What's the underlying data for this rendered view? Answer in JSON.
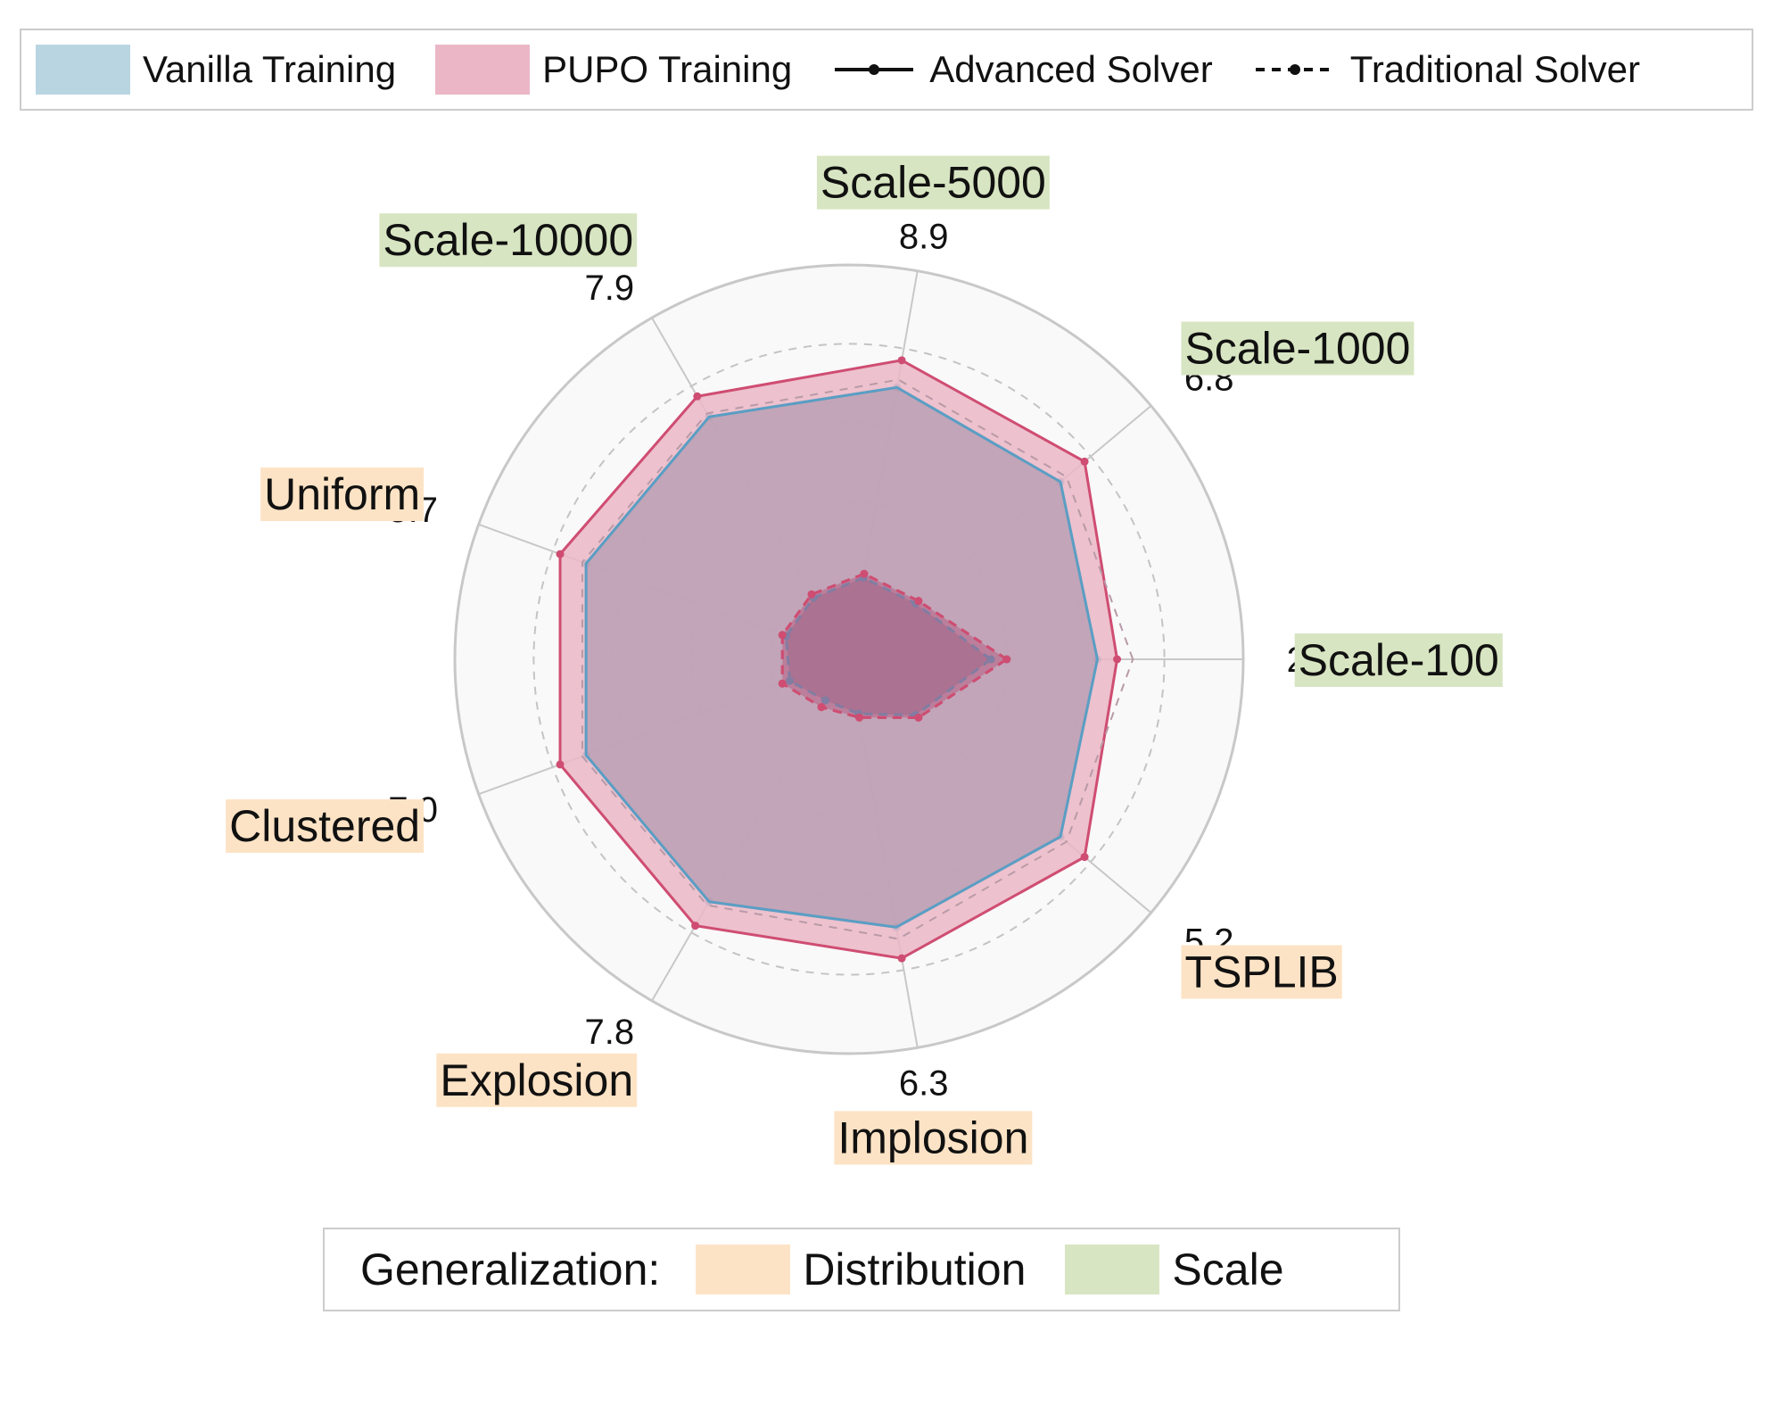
{
  "legend_top": {
    "vanilla_label": "Vanilla Training",
    "pupo_label": "PUPO Training",
    "advanced_label": "Advanced Solver",
    "traditional_label": "Traditional Solver"
  },
  "legend_bottom": {
    "title": "Generalization:",
    "distribution_label": "Distribution",
    "scale_label": "Scale"
  },
  "colors": {
    "vanilla_fill": "#b9d5e2",
    "vanilla_line": "#5a9ec4",
    "pupo_fill": "#ebb7c6",
    "pupo_line": "#cf4d72",
    "distribution_bg": "#fde3c5",
    "scale_bg": "#d8e5c2",
    "grid": "#c8c8c8",
    "background": "#f9f9f9"
  },
  "chart_data": {
    "type": "radar",
    "axes": [
      {
        "name": "Scale-100",
        "value_label": "2.5",
        "group": "Scale"
      },
      {
        "name": "Scale-1000",
        "value_label": "6.8",
        "group": "Scale"
      },
      {
        "name": "Scale-5000",
        "value_label": "8.9",
        "group": "Scale"
      },
      {
        "name": "Scale-10000",
        "value_label": "7.9",
        "group": "Scale"
      },
      {
        "name": "Uniform",
        "value_label": "5.7",
        "group": "Distribution"
      },
      {
        "name": "Clustered",
        "value_label": "7.0",
        "group": "Distribution"
      },
      {
        "name": "Explosion",
        "value_label": "7.8",
        "group": "Distribution"
      },
      {
        "name": "Implosion",
        "value_label": "6.3",
        "group": "Distribution"
      },
      {
        "name": "TSPLIB",
        "value_label": "5.2",
        "group": "Distribution"
      }
    ],
    "rlim": [
      0,
      1
    ],
    "grid_rings": [
      0.2,
      0.4,
      0.6,
      0.8
    ],
    "series": [
      {
        "name": "Vanilla Training",
        "solver": "Traditional Solver",
        "values": [
          0.36,
          0.22,
          0.21,
          0.18,
          0.17,
          0.16,
          0.12,
          0.14,
          0.22
        ]
      },
      {
        "name": "PUPO Training",
        "solver": "Traditional Solver",
        "values": [
          0.4,
          0.23,
          0.22,
          0.19,
          0.18,
          0.18,
          0.14,
          0.15,
          0.23
        ]
      },
      {
        "name": "Vanilla Training",
        "solver": "Advanced Solver",
        "values": [
          0.63,
          0.7,
          0.7,
          0.71,
          0.71,
          0.71,
          0.71,
          0.69,
          0.7
        ]
      },
      {
        "name": "PUPO Training",
        "solver": "Advanced Solver",
        "values": [
          0.68,
          0.78,
          0.77,
          0.77,
          0.78,
          0.78,
          0.78,
          0.77,
          0.78
        ]
      }
    ],
    "reference_dashed_ring": 0.72,
    "legend_position": "top"
  }
}
